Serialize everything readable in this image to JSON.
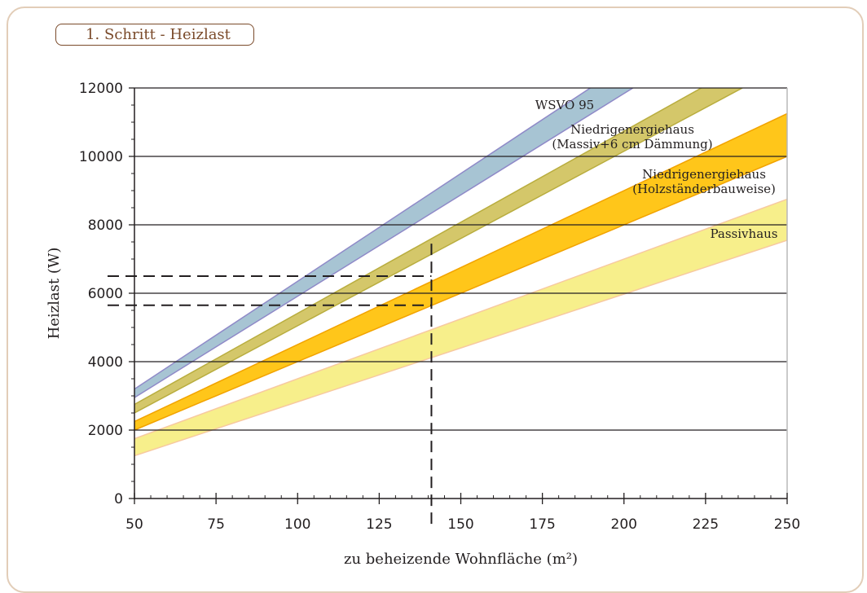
{
  "header": {
    "step_label": "1. Schritt - Heizlast"
  },
  "chart_data": {
    "type": "area",
    "xlabel": "zu beheizende Wohnfläche (m²)",
    "ylabel": "Heizlast  (W)",
    "xlim": [
      50,
      250
    ],
    "ylim": [
      0,
      12000
    ],
    "x_ticks": [
      50,
      75,
      100,
      125,
      150,
      175,
      200,
      225,
      250
    ],
    "y_ticks": [
      0,
      2000,
      4000,
      6000,
      8000,
      10000,
      12000
    ],
    "grid": "horizontal",
    "series": [
      {
        "name": "WSVO 95",
        "label_lines": [
          "WSVO 95"
        ],
        "color": "#a7c4d3",
        "edge": "#8f8ac8",
        "lower": [
          [
            50,
            2950
          ],
          [
            250,
            14800
          ]
        ],
        "upper": [
          [
            50,
            3200
          ],
          [
            250,
            15800
          ]
        ]
      },
      {
        "name": "Niedrigenergiehaus (Massiv+6 cm Dämmung)",
        "label_lines": [
          "Niedrigenergiehaus",
          "(Massiv+6 cm Dämmung)"
        ],
        "color": "#d4c76a",
        "edge": "#b9ad3f",
        "lower": [
          [
            50,
            2500
          ],
          [
            250,
            12700
          ]
        ],
        "upper": [
          [
            50,
            2750
          ],
          [
            250,
            13400
          ]
        ]
      },
      {
        "name": "Niedrigenergiehaus (Holzständerbauweise)",
        "label_lines": [
          "Niedrigenergiehaus",
          "(Holzständerbauweise)"
        ],
        "color": "#ffc61a",
        "edge": "#f2a300",
        "lower": [
          [
            50,
            2000
          ],
          [
            250,
            10000
          ]
        ],
        "upper": [
          [
            50,
            2250
          ],
          [
            250,
            11250
          ]
        ]
      },
      {
        "name": "Passivhaus",
        "label_lines": [
          "Passivhaus"
        ],
        "color": "#f7ef8b",
        "edge": "#f7c9a0",
        "lower": [
          [
            50,
            1250
          ],
          [
            250,
            7550
          ]
        ],
        "upper": [
          [
            50,
            1750
          ],
          [
            250,
            8750
          ]
        ]
      }
    ],
    "reference": {
      "x": 141,
      "y_values": [
        5650,
        6500
      ]
    }
  }
}
